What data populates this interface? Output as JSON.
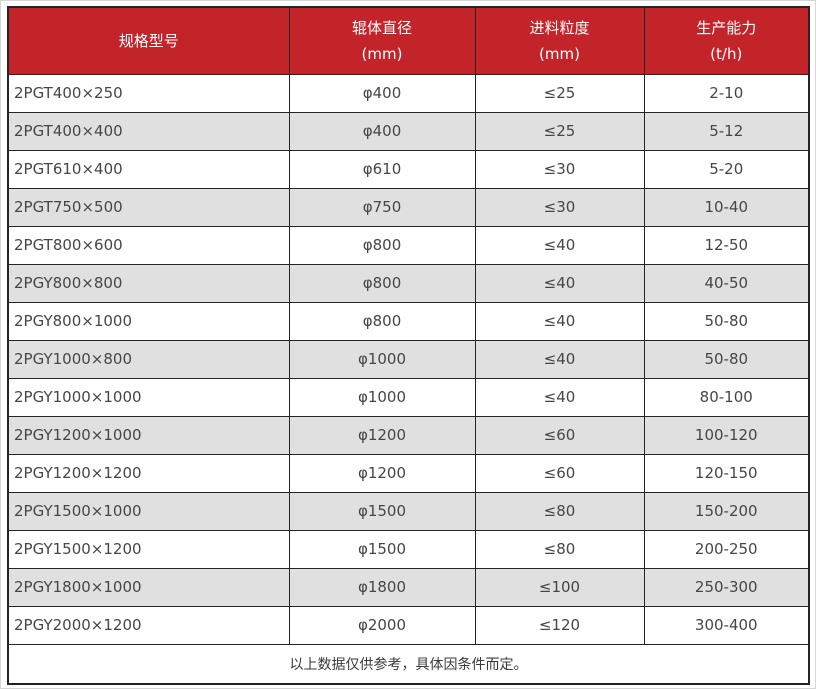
{
  "colors": {
    "header_bg": "#C2242A",
    "header_text": "#FFFFFF",
    "row_alt_bg": "#E0E0E0",
    "border": "#242424",
    "body_text": "#464646"
  },
  "table": {
    "column_keys": [
      "model",
      "roller-diameter",
      "feed-size",
      "capacity"
    ],
    "columns": [
      {
        "label": "规格型号",
        "unit": ""
      },
      {
        "label": "辊体直径",
        "unit": "(mm)"
      },
      {
        "label": "进料粒度",
        "unit": "(mm)"
      },
      {
        "label": "生产能力",
        "unit": "(t/h)"
      }
    ],
    "rows": [
      [
        "2PGT400×250",
        "φ400",
        "≤25",
        "2-10"
      ],
      [
        "2PGT400×400",
        "φ400",
        "≤25",
        "5-12"
      ],
      [
        "2PGT610×400",
        "φ610",
        "≤30",
        "5-20"
      ],
      [
        "2PGT750×500",
        "φ750",
        "≤30",
        "10-40"
      ],
      [
        "2PGT800×600",
        "φ800",
        "≤40",
        "12-50"
      ],
      [
        "2PGY800×800",
        "φ800",
        "≤40",
        "40-50"
      ],
      [
        "2PGY800×1000",
        "φ800",
        "≤40",
        "50-80"
      ],
      [
        "2PGY1000×800",
        "φ1000",
        "≤40",
        "50-80"
      ],
      [
        "2PGY1000×1000",
        "φ1000",
        "≤40",
        "80-100"
      ],
      [
        "2PGY1200×1000",
        "φ1200",
        "≤60",
        "100-120"
      ],
      [
        "2PGY1200×1200",
        "φ1200",
        "≤60",
        "120-150"
      ],
      [
        "2PGY1500×1000",
        "φ1500",
        "≤80",
        "150-200"
      ],
      [
        "2PGY1500×1200",
        "φ1500",
        "≤80",
        "200-250"
      ],
      [
        "2PGY1800×1000",
        "φ1800",
        "≤100",
        "250-300"
      ],
      [
        "2PGY2000×1200",
        "φ2000",
        "≤120",
        "300-400"
      ]
    ],
    "footer_note": "以上数据仅供参考，具体因条件而定。"
  }
}
